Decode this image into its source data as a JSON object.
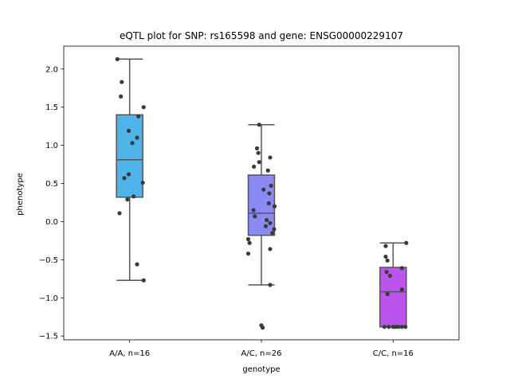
{
  "chart_data": {
    "type": "box",
    "title": "eQTL plot for SNP: rs165598 and gene: ENSG00000229107",
    "xlabel": "genotype",
    "ylabel": "phenotype",
    "ylim": [
      -1.55,
      2.3
    ],
    "yticks": [
      {
        "value": 2.0,
        "label": "2.0"
      },
      {
        "value": 1.5,
        "label": "1.5"
      },
      {
        "value": 1.0,
        "label": "1.0"
      },
      {
        "value": 0.5,
        "label": "0.5"
      },
      {
        "value": 0.0,
        "label": "0.0"
      },
      {
        "value": -0.5,
        "label": "−0.5"
      },
      {
        "value": -1.0,
        "label": "−1.0"
      },
      {
        "value": -1.5,
        "label": "−1.5"
      }
    ],
    "grid": false,
    "groups": [
      {
        "category": "A/A, n=16",
        "color": "#4fb4ea",
        "box": {
          "whisker_low": -0.77,
          "q1": 0.32,
          "median": 0.81,
          "q3": 1.4,
          "whisker_high": 2.13
        },
        "points": [
          {
            "offset": -0.28,
            "y": 2.13
          },
          {
            "offset": -0.18,
            "y": 1.83
          },
          {
            "offset": -0.2,
            "y": 1.64
          },
          {
            "offset": 0.32,
            "y": 1.5
          },
          {
            "offset": 0.2,
            "y": 1.38
          },
          {
            "offset": -0.02,
            "y": 1.19
          },
          {
            "offset": 0.17,
            "y": 1.1
          },
          {
            "offset": 0.06,
            "y": 1.03
          },
          {
            "offset": -0.02,
            "y": 0.62
          },
          {
            "offset": -0.12,
            "y": 0.57
          },
          {
            "offset": 0.3,
            "y": 0.51
          },
          {
            "offset": 0.09,
            "y": 0.33
          },
          {
            "offset": -0.05,
            "y": 0.29
          },
          {
            "offset": -0.23,
            "y": 0.11
          },
          {
            "offset": 0.17,
            "y": -0.56
          },
          {
            "offset": 0.32,
            "y": -0.77
          }
        ]
      },
      {
        "category": "A/C, n=26",
        "color": "#8a8af2",
        "box": {
          "whisker_low": -0.83,
          "q1": -0.18,
          "median": 0.11,
          "q3": 0.61,
          "whisker_high": 1.27
        },
        "points": [
          {
            "offset": -0.05,
            "y": 1.27
          },
          {
            "offset": -0.1,
            "y": 0.96
          },
          {
            "offset": -0.07,
            "y": 0.9
          },
          {
            "offset": 0.2,
            "y": 0.84
          },
          {
            "offset": -0.05,
            "y": 0.78
          },
          {
            "offset": -0.17,
            "y": 0.72
          },
          {
            "offset": 0.15,
            "y": 0.67
          },
          {
            "offset": 0.22,
            "y": 0.47
          },
          {
            "offset": 0.05,
            "y": 0.42
          },
          {
            "offset": 0.18,
            "y": 0.37
          },
          {
            "offset": 0.17,
            "y": 0.24
          },
          {
            "offset": 0.3,
            "y": 0.2
          },
          {
            "offset": -0.18,
            "y": 0.15
          },
          {
            "offset": -0.15,
            "y": 0.07
          },
          {
            "offset": 0.12,
            "y": 0.02
          },
          {
            "offset": 0.2,
            "y": -0.02
          },
          {
            "offset": 0.1,
            "y": -0.06
          },
          {
            "offset": 0.29,
            "y": -0.1
          },
          {
            "offset": 0.25,
            "y": -0.15
          },
          {
            "offset": -0.3,
            "y": -0.23
          },
          {
            "offset": -0.27,
            "y": -0.28
          },
          {
            "offset": 0.2,
            "y": -0.36
          },
          {
            "offset": -0.3,
            "y": -0.42
          },
          {
            "offset": 0.2,
            "y": -0.83
          },
          {
            "offset": 0.0,
            "y": -1.36
          },
          {
            "offset": 0.03,
            "y": -1.39
          }
        ]
      },
      {
        "category": "C/C, n=16",
        "color": "#bb55ee",
        "box": {
          "whisker_low": -1.38,
          "q1": -1.38,
          "median": -0.92,
          "q3": -0.6,
          "whisker_high": -0.28
        },
        "points": [
          {
            "offset": 0.3,
            "y": -0.28
          },
          {
            "offset": -0.17,
            "y": -0.32
          },
          {
            "offset": -0.17,
            "y": -0.46
          },
          {
            "offset": -0.13,
            "y": -0.51
          },
          {
            "offset": 0.2,
            "y": -0.61
          },
          {
            "offset": -0.15,
            "y": -0.66
          },
          {
            "offset": -0.07,
            "y": -0.71
          },
          {
            "offset": 0.2,
            "y": -0.89
          },
          {
            "offset": -0.13,
            "y": -0.95
          },
          {
            "offset": -0.2,
            "y": -1.38
          },
          {
            "offset": -0.1,
            "y": -1.38
          },
          {
            "offset": 0.0,
            "y": -1.38
          },
          {
            "offset": 0.06,
            "y": -1.38
          },
          {
            "offset": 0.12,
            "y": -1.38
          },
          {
            "offset": 0.2,
            "y": -1.38
          },
          {
            "offset": 0.28,
            "y": -1.38
          }
        ]
      }
    ]
  }
}
